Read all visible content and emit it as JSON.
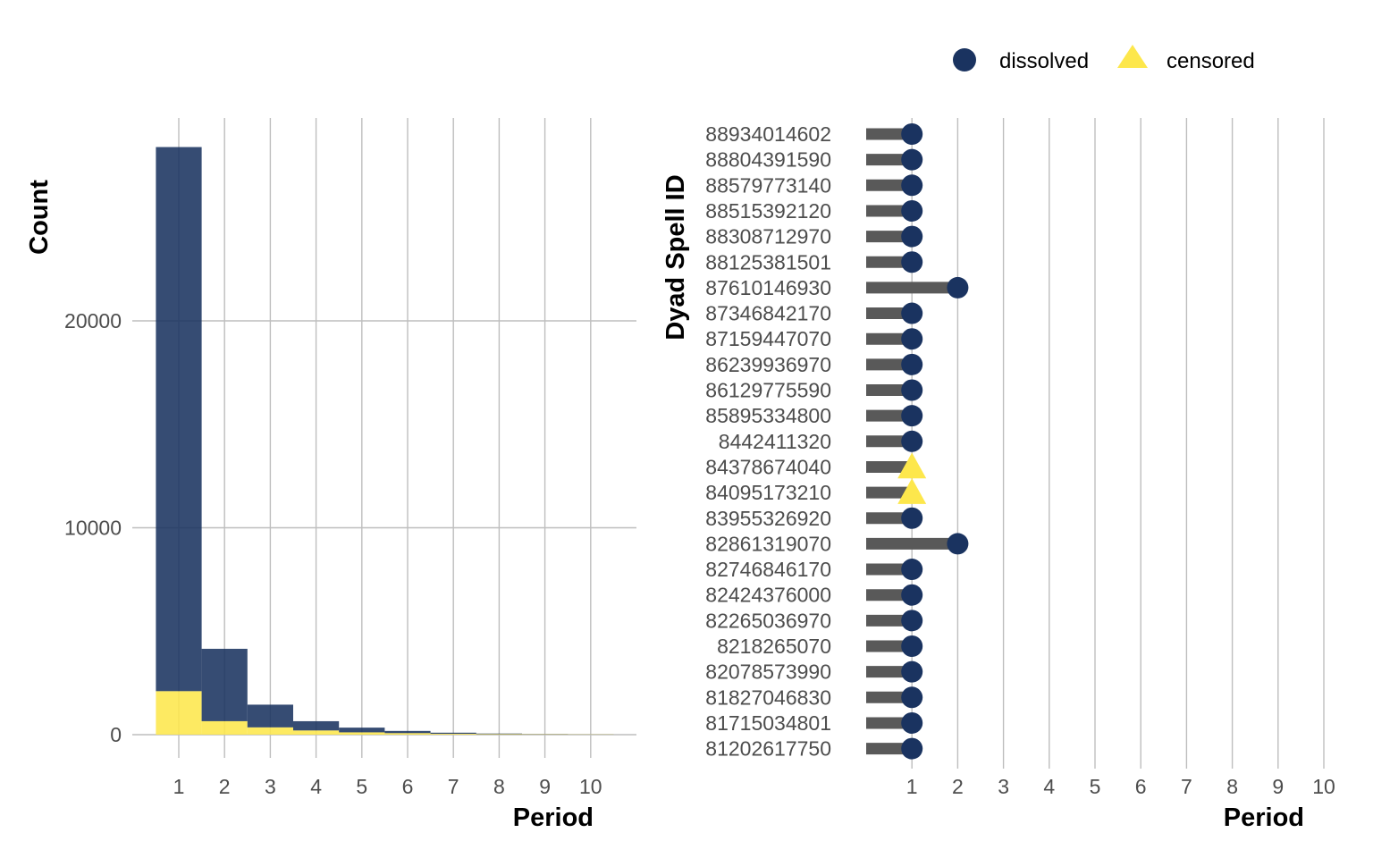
{
  "colors": {
    "dissolved": "#1a3360",
    "censored": "#fde74c",
    "segment": "#595959",
    "grid": "#bebebe"
  },
  "legend": {
    "items": [
      {
        "label": "dissolved",
        "shape": "circle",
        "color": "#1a3360"
      },
      {
        "label": "censored",
        "shape": "triangle",
        "color": "#fde74c"
      }
    ],
    "position": "top-right"
  },
  "chart_data": [
    {
      "type": "bar",
      "stacked": true,
      "xlabel": "Period",
      "ylabel": "Count",
      "x_ticks": [
        "1",
        "2",
        "3",
        "4",
        "5",
        "6",
        "7",
        "8",
        "9",
        "10"
      ],
      "y_ticks": [
        "0",
        "10000",
        "20000"
      ],
      "ylim": [
        0,
        28500
      ],
      "grid": true,
      "categories": [
        1,
        2,
        3,
        4,
        5,
        6,
        7,
        8,
        9,
        10
      ],
      "series": [
        {
          "name": "dissolved",
          "color": "#1a3360",
          "values": [
            26300,
            3500,
            1100,
            450,
            230,
            110,
            55,
            30,
            15,
            8
          ]
        },
        {
          "name": "censored",
          "color": "#fde74c",
          "values": [
            2100,
            650,
            350,
            200,
            110,
            70,
            40,
            25,
            15,
            10
          ]
        }
      ]
    },
    {
      "type": "scatter",
      "subtype": "lollipop",
      "xlabel": "Period",
      "ylabel": "Dyad Spell ID",
      "x_ticks": [
        "1",
        "2",
        "3",
        "4",
        "5",
        "6",
        "7",
        "8",
        "9",
        "10"
      ],
      "xlim": [
        0,
        10
      ],
      "grid": true,
      "points": [
        {
          "id": "88934014602",
          "period": 1,
          "status": "dissolved"
        },
        {
          "id": "88804391590",
          "period": 1,
          "status": "dissolved"
        },
        {
          "id": "88579773140",
          "period": 1,
          "status": "dissolved"
        },
        {
          "id": "88515392120",
          "period": 1,
          "status": "dissolved"
        },
        {
          "id": "88308712970",
          "period": 1,
          "status": "dissolved"
        },
        {
          "id": "88125381501",
          "period": 1,
          "status": "dissolved"
        },
        {
          "id": "87610146930",
          "period": 2,
          "status": "dissolved"
        },
        {
          "id": "87346842170",
          "period": 1,
          "status": "dissolved"
        },
        {
          "id": "87159447070",
          "period": 1,
          "status": "dissolved"
        },
        {
          "id": "86239936970",
          "period": 1,
          "status": "dissolved"
        },
        {
          "id": "86129775590",
          "period": 1,
          "status": "dissolved"
        },
        {
          "id": "85895334800",
          "period": 1,
          "status": "dissolved"
        },
        {
          "id": "8442411320",
          "period": 1,
          "status": "dissolved"
        },
        {
          "id": "84378674040",
          "period": 1,
          "status": "censored"
        },
        {
          "id": "84095173210",
          "period": 1,
          "status": "censored"
        },
        {
          "id": "83955326920",
          "period": 1,
          "status": "dissolved"
        },
        {
          "id": "82861319070",
          "period": 2,
          "status": "dissolved"
        },
        {
          "id": "82746846170",
          "period": 1,
          "status": "dissolved"
        },
        {
          "id": "82424376000",
          "period": 1,
          "status": "dissolved"
        },
        {
          "id": "82265036970",
          "period": 1,
          "status": "dissolved"
        },
        {
          "id": "8218265070",
          "period": 1,
          "status": "dissolved"
        },
        {
          "id": "82078573990",
          "period": 1,
          "status": "dissolved"
        },
        {
          "id": "81827046830",
          "period": 1,
          "status": "dissolved"
        },
        {
          "id": "81715034801",
          "period": 1,
          "status": "dissolved"
        },
        {
          "id": "81202617750",
          "period": 1,
          "status": "dissolved"
        }
      ]
    }
  ]
}
